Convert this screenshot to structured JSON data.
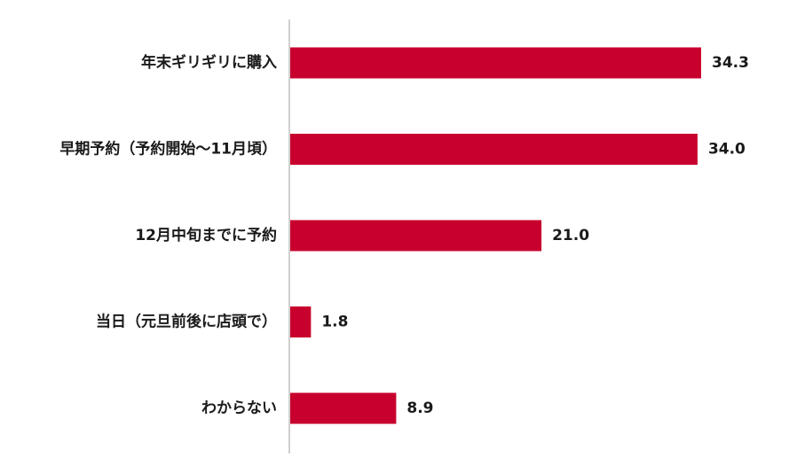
{
  "chart_data": {
    "type": "bar",
    "orientation": "horizontal",
    "categories": [
      "年末ギリギリに購入",
      "早期予約（予約開始～11月頃）",
      "12月中旬までに予約",
      "当日（元旦前後に店頭で）",
      "わからない"
    ],
    "values": [
      34.3,
      34.0,
      21.0,
      1.8,
      8.9
    ],
    "value_labels": [
      "34.3",
      "34.0",
      "21.0",
      "1.8",
      "8.9"
    ],
    "title": "",
    "xlabel": "",
    "ylabel": "",
    "xlim": [
      0,
      35
    ],
    "grid": false,
    "legend": "none",
    "bar_color": "#c8002d",
    "axis_color": "#bfbfbf",
    "text_color": "#1a1a1a"
  }
}
